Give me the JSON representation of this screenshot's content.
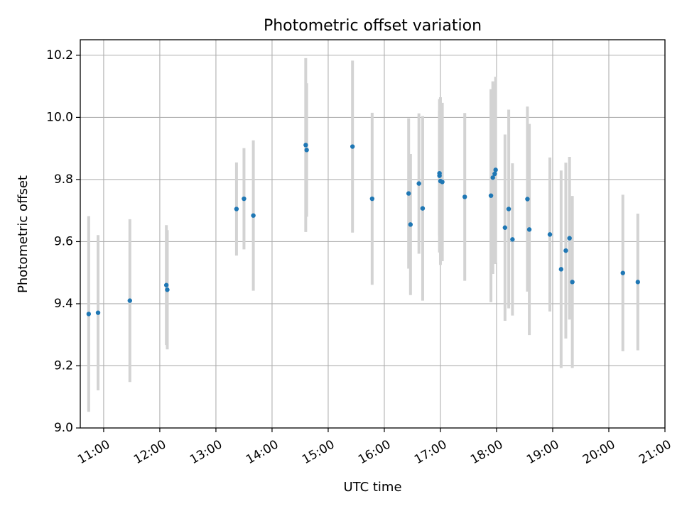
{
  "chart_data": {
    "type": "scatter",
    "title": "Photometric offset variation",
    "xlabel": "UTC time",
    "ylabel": "Photometric offset",
    "xlim": [
      "10:35",
      "21:00"
    ],
    "ylim": [
      9.0,
      10.25
    ],
    "grid": true,
    "x_ticks": [
      "11:00",
      "12:00",
      "13:00",
      "14:00",
      "15:00",
      "16:00",
      "17:00",
      "18:00",
      "19:00",
      "20:00",
      "21:00"
    ],
    "y_ticks": [
      "9.0",
      "9.2",
      "9.4",
      "9.6",
      "9.8",
      "10.0",
      "10.2"
    ],
    "point_color": "#1f77b4",
    "errorbar_color": "#d3d3d3",
    "points": [
      {
        "x": "10:44",
        "y": 9.367,
        "err": 0.315
      },
      {
        "x": "10:54",
        "y": 9.371,
        "err": 0.25
      },
      {
        "x": "11:28",
        "y": 9.41,
        "err": 0.262
      },
      {
        "x": "12:07",
        "y": 9.46,
        "err": 0.193
      },
      {
        "x": "12:08",
        "y": 9.445,
        "err": 0.192
      },
      {
        "x": "13:22",
        "y": 9.705,
        "err": 0.15
      },
      {
        "x": "13:30",
        "y": 9.738,
        "err": 0.163
      },
      {
        "x": "13:40",
        "y": 9.684,
        "err": 0.242
      },
      {
        "x": "14:36",
        "y": 9.911,
        "err": 0.28
      },
      {
        "x": "14:37",
        "y": 9.895,
        "err": 0.215
      },
      {
        "x": "15:26",
        "y": 9.906,
        "err": 0.277
      },
      {
        "x": "15:47",
        "y": 9.738,
        "err": 0.277
      },
      {
        "x": "16:26",
        "y": 9.755,
        "err": 0.242
      },
      {
        "x": "16:28",
        "y": 9.655,
        "err": 0.227
      },
      {
        "x": "16:37",
        "y": 9.787,
        "err": 0.226
      },
      {
        "x": "16:41",
        "y": 9.707,
        "err": 0.297
      },
      {
        "x": "16:59",
        "y": 9.82,
        "err": 0.202
      },
      {
        "x": "16:59",
        "y": 9.812,
        "err": 0.247
      },
      {
        "x": "17:00",
        "y": 9.795,
        "err": 0.27
      },
      {
        "x": "17:02",
        "y": 9.792,
        "err": 0.255
      },
      {
        "x": "17:26",
        "y": 9.744,
        "err": 0.27
      },
      {
        "x": "17:54",
        "y": 9.748,
        "err": 0.343
      },
      {
        "x": "17:56",
        "y": 9.806,
        "err": 0.31
      },
      {
        "x": "17:58",
        "y": 9.818,
        "err": 0.29
      },
      {
        "x": "17:59",
        "y": 9.831,
        "err": 0.3
      },
      {
        "x": "18:09",
        "y": 9.645,
        "err": 0.3
      },
      {
        "x": "18:13",
        "y": 9.705,
        "err": 0.32
      },
      {
        "x": "18:17",
        "y": 9.607,
        "err": 0.245
      },
      {
        "x": "18:33",
        "y": 9.737,
        "err": 0.298
      },
      {
        "x": "18:35",
        "y": 9.639,
        "err": 0.34
      },
      {
        "x": "18:57",
        "y": 9.623,
        "err": 0.248
      },
      {
        "x": "19:09",
        "y": 9.511,
        "err": 0.318
      },
      {
        "x": "19:14",
        "y": 9.571,
        "err": 0.283
      },
      {
        "x": "19:18",
        "y": 9.611,
        "err": 0.262
      },
      {
        "x": "19:21",
        "y": 9.47,
        "err": 0.277
      },
      {
        "x": "20:15",
        "y": 9.499,
        "err": 0.252
      },
      {
        "x": "20:31",
        "y": 9.47,
        "err": 0.22
      }
    ]
  }
}
